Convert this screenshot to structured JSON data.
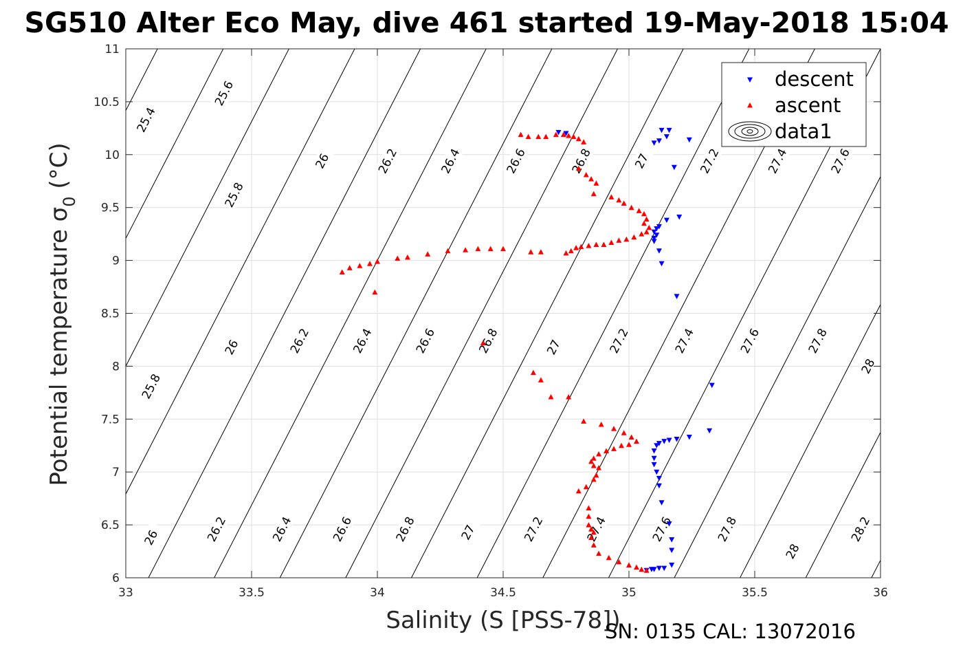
{
  "chart_data": {
    "type": "scatter",
    "title": "SG510 Alter Eco May, dive 461 started 19-May-2018 15:04",
    "xlabel": "Salinity (S [PSS-78])",
    "ylabel_main": "Potential temperature σ",
    "ylabel_sub": "0",
    "ylabel_tail": " (°C)",
    "footer": "SN: 0135  CAL: 13072016",
    "xlim": [
      33,
      36
    ],
    "ylim": [
      6,
      11
    ],
    "xticks": [
      "33",
      "33.5",
      "34",
      "34.5",
      "35",
      "35.5",
      "36"
    ],
    "yticks": [
      "6",
      "6.5",
      "7",
      "7.5",
      "8",
      "8.5",
      "9",
      "9.5",
      "10",
      "10.5",
      "11"
    ],
    "grid": true,
    "legend_position": "top-right",
    "series": [
      {
        "name": "descent",
        "marker": "triangle-down",
        "color": "#0000ff",
        "points": [
          [
            34.72,
            10.21
          ],
          [
            34.75,
            10.2
          ],
          [
            35.16,
            10.23
          ],
          [
            35.13,
            10.23
          ],
          [
            35.15,
            10.17
          ],
          [
            35.12,
            10.13
          ],
          [
            35.1,
            10.11
          ],
          [
            35.24,
            10.14
          ],
          [
            35.18,
            9.88
          ],
          [
            35.12,
            9.32
          ],
          [
            35.11,
            9.3
          ],
          [
            35.1,
            9.27
          ],
          [
            35.11,
            9.24
          ],
          [
            35.1,
            9.21
          ],
          [
            35.1,
            9.18
          ],
          [
            35.15,
            9.38
          ],
          [
            35.2,
            9.41
          ],
          [
            35.12,
            9.09
          ],
          [
            35.13,
            8.97
          ],
          [
            35.19,
            8.66
          ],
          [
            35.33,
            7.82
          ],
          [
            35.32,
            7.39
          ],
          [
            35.24,
            7.33
          ],
          [
            35.19,
            7.31
          ],
          [
            35.16,
            7.3
          ],
          [
            35.14,
            7.29
          ],
          [
            35.12,
            7.27
          ],
          [
            35.11,
            7.25
          ],
          [
            35.1,
            7.2
          ],
          [
            35.1,
            7.13
          ],
          [
            35.1,
            7.07
          ],
          [
            35.11,
            7.0
          ],
          [
            35.12,
            6.94
          ],
          [
            35.12,
            6.87
          ],
          [
            35.13,
            6.71
          ],
          [
            35.16,
            6.51
          ],
          [
            35.17,
            6.36
          ],
          [
            35.17,
            6.26
          ],
          [
            35.17,
            6.12
          ],
          [
            35.14,
            6.09
          ],
          [
            35.12,
            6.09
          ],
          [
            35.1,
            6.08
          ],
          [
            35.09,
            6.08
          ],
          [
            35.07,
            6.07
          ]
        ]
      },
      {
        "name": "ascent",
        "marker": "triangle-up",
        "color": "#ff0000",
        "points": [
          [
            34.57,
            10.19
          ],
          [
            34.6,
            10.17
          ],
          [
            34.64,
            10.17
          ],
          [
            34.67,
            10.17
          ],
          [
            34.71,
            10.19
          ],
          [
            34.74,
            10.19
          ],
          [
            34.76,
            10.18
          ],
          [
            34.78,
            10.17
          ],
          [
            34.8,
            10.15
          ],
          [
            34.82,
            10.12
          ],
          [
            34.8,
            9.87
          ],
          [
            34.83,
            9.81
          ],
          [
            34.85,
            9.77
          ],
          [
            34.87,
            9.73
          ],
          [
            34.86,
            9.63
          ],
          [
            34.93,
            9.6
          ],
          [
            34.96,
            9.57
          ],
          [
            34.98,
            9.54
          ],
          [
            35.01,
            9.5
          ],
          [
            35.04,
            9.47
          ],
          [
            35.06,
            9.44
          ],
          [
            35.07,
            9.39
          ],
          [
            35.06,
            9.35
          ],
          [
            35.08,
            9.31
          ],
          [
            35.07,
            9.27
          ],
          [
            35.05,
            9.25
          ],
          [
            35.02,
            9.22
          ],
          [
            34.99,
            9.2
          ],
          [
            34.96,
            9.19
          ],
          [
            34.93,
            9.17
          ],
          [
            34.9,
            9.15
          ],
          [
            34.87,
            9.15
          ],
          [
            34.84,
            9.14
          ],
          [
            34.81,
            9.13
          ],
          [
            34.79,
            9.12
          ],
          [
            34.77,
            9.09
          ],
          [
            34.75,
            9.07
          ],
          [
            34.65,
            9.08
          ],
          [
            34.61,
            9.08
          ],
          [
            34.5,
            9.11
          ],
          [
            34.45,
            9.11
          ],
          [
            34.4,
            9.11
          ],
          [
            34.35,
            9.1
          ],
          [
            34.28,
            9.09
          ],
          [
            34.2,
            9.06
          ],
          [
            34.12,
            9.03
          ],
          [
            34.08,
            9.02
          ],
          [
            34.0,
            8.99
          ],
          [
            33.97,
            8.97
          ],
          [
            33.93,
            8.95
          ],
          [
            33.89,
            8.93
          ],
          [
            33.86,
            8.89
          ],
          [
            33.99,
            8.7
          ],
          [
            34.42,
            8.22
          ],
          [
            34.62,
            7.94
          ],
          [
            34.65,
            7.87
          ],
          [
            34.69,
            7.71
          ],
          [
            34.76,
            7.71
          ],
          [
            34.82,
            7.48
          ],
          [
            34.89,
            7.45
          ],
          [
            34.94,
            7.41
          ],
          [
            34.98,
            7.37
          ],
          [
            35.01,
            7.33
          ],
          [
            35.03,
            7.29
          ],
          [
            35.0,
            7.26
          ],
          [
            34.97,
            7.25
          ],
          [
            34.94,
            7.22
          ],
          [
            34.91,
            7.2
          ],
          [
            34.88,
            7.17
          ],
          [
            34.86,
            7.13
          ],
          [
            34.85,
            7.1
          ],
          [
            34.86,
            7.06
          ],
          [
            34.88,
            7.04
          ],
          [
            34.87,
            6.97
          ],
          [
            34.86,
            6.93
          ],
          [
            34.83,
            6.86
          ],
          [
            34.8,
            6.82
          ],
          [
            34.84,
            6.66
          ],
          [
            34.84,
            6.58
          ],
          [
            34.84,
            6.5
          ],
          [
            34.85,
            6.46
          ],
          [
            34.86,
            6.43
          ],
          [
            34.85,
            6.38
          ],
          [
            34.86,
            6.31
          ],
          [
            34.88,
            6.23
          ],
          [
            34.92,
            6.19
          ],
          [
            34.96,
            6.15
          ],
          [
            35.0,
            6.12
          ],
          [
            35.03,
            6.1
          ],
          [
            35.05,
            6.08
          ],
          [
            35.07,
            6.07
          ]
        ]
      },
      {
        "name": "data1",
        "marker": "contour",
        "color": "#000000",
        "points": []
      }
    ],
    "contour_levels": [
      {
        "label": "25.4",
        "label_points": [
          [
            33.08,
            10.33
          ]
        ]
      },
      {
        "label": "25.6",
        "label_points": [
          [
            33.39,
            10.58
          ]
        ]
      },
      {
        "label": "25.8",
        "label_points": [
          [
            33.43,
            9.62
          ],
          [
            33.1,
            7.81
          ]
        ]
      },
      {
        "label": "26",
        "label_points": [
          [
            33.78,
            9.94
          ],
          [
            33.42,
            8.18
          ],
          [
            33.1,
            6.38
          ]
        ]
      },
      {
        "label": "26.2",
        "label_points": [
          [
            34.04,
            9.94
          ],
          [
            33.69,
            8.24
          ],
          [
            33.36,
            6.46
          ]
        ]
      },
      {
        "label": "26.4",
        "label_points": [
          [
            34.29,
            9.94
          ],
          [
            33.94,
            8.24
          ],
          [
            33.62,
            6.46
          ]
        ]
      },
      {
        "label": "26.6",
        "label_points": [
          [
            34.55,
            9.94
          ],
          [
            34.19,
            8.24
          ],
          [
            33.86,
            6.46
          ]
        ]
      },
      {
        "label": "26.8",
        "label_points": [
          [
            34.81,
            9.94
          ],
          [
            34.44,
            8.24
          ],
          [
            34.11,
            6.46
          ]
        ]
      },
      {
        "label": "27",
        "label_points": [
          [
            35.05,
            9.94
          ],
          [
            34.7,
            8.18
          ],
          [
            34.36,
            6.43
          ]
        ]
      },
      {
        "label": "27.2",
        "label_points": [
          [
            35.32,
            9.94
          ],
          [
            34.96,
            8.24
          ],
          [
            34.62,
            6.46
          ]
        ]
      },
      {
        "label": "27.4",
        "label_points": [
          [
            35.59,
            9.94
          ],
          [
            35.22,
            8.24
          ],
          [
            34.87,
            6.46
          ]
        ]
      },
      {
        "label": "27.6",
        "label_points": [
          [
            35.84,
            9.94
          ],
          [
            35.48,
            8.24
          ],
          [
            35.13,
            6.46
          ]
        ]
      },
      {
        "label": "27.8",
        "label_points": [
          [
            35.75,
            8.24
          ],
          [
            35.39,
            6.46
          ]
        ]
      },
      {
        "label": "28",
        "label_points": [
          [
            35.95,
            8.0
          ],
          [
            35.65,
            6.25
          ]
        ]
      },
      {
        "label": "28.2",
        "label_points": [
          [
            35.92,
            6.46
          ]
        ]
      }
    ]
  }
}
